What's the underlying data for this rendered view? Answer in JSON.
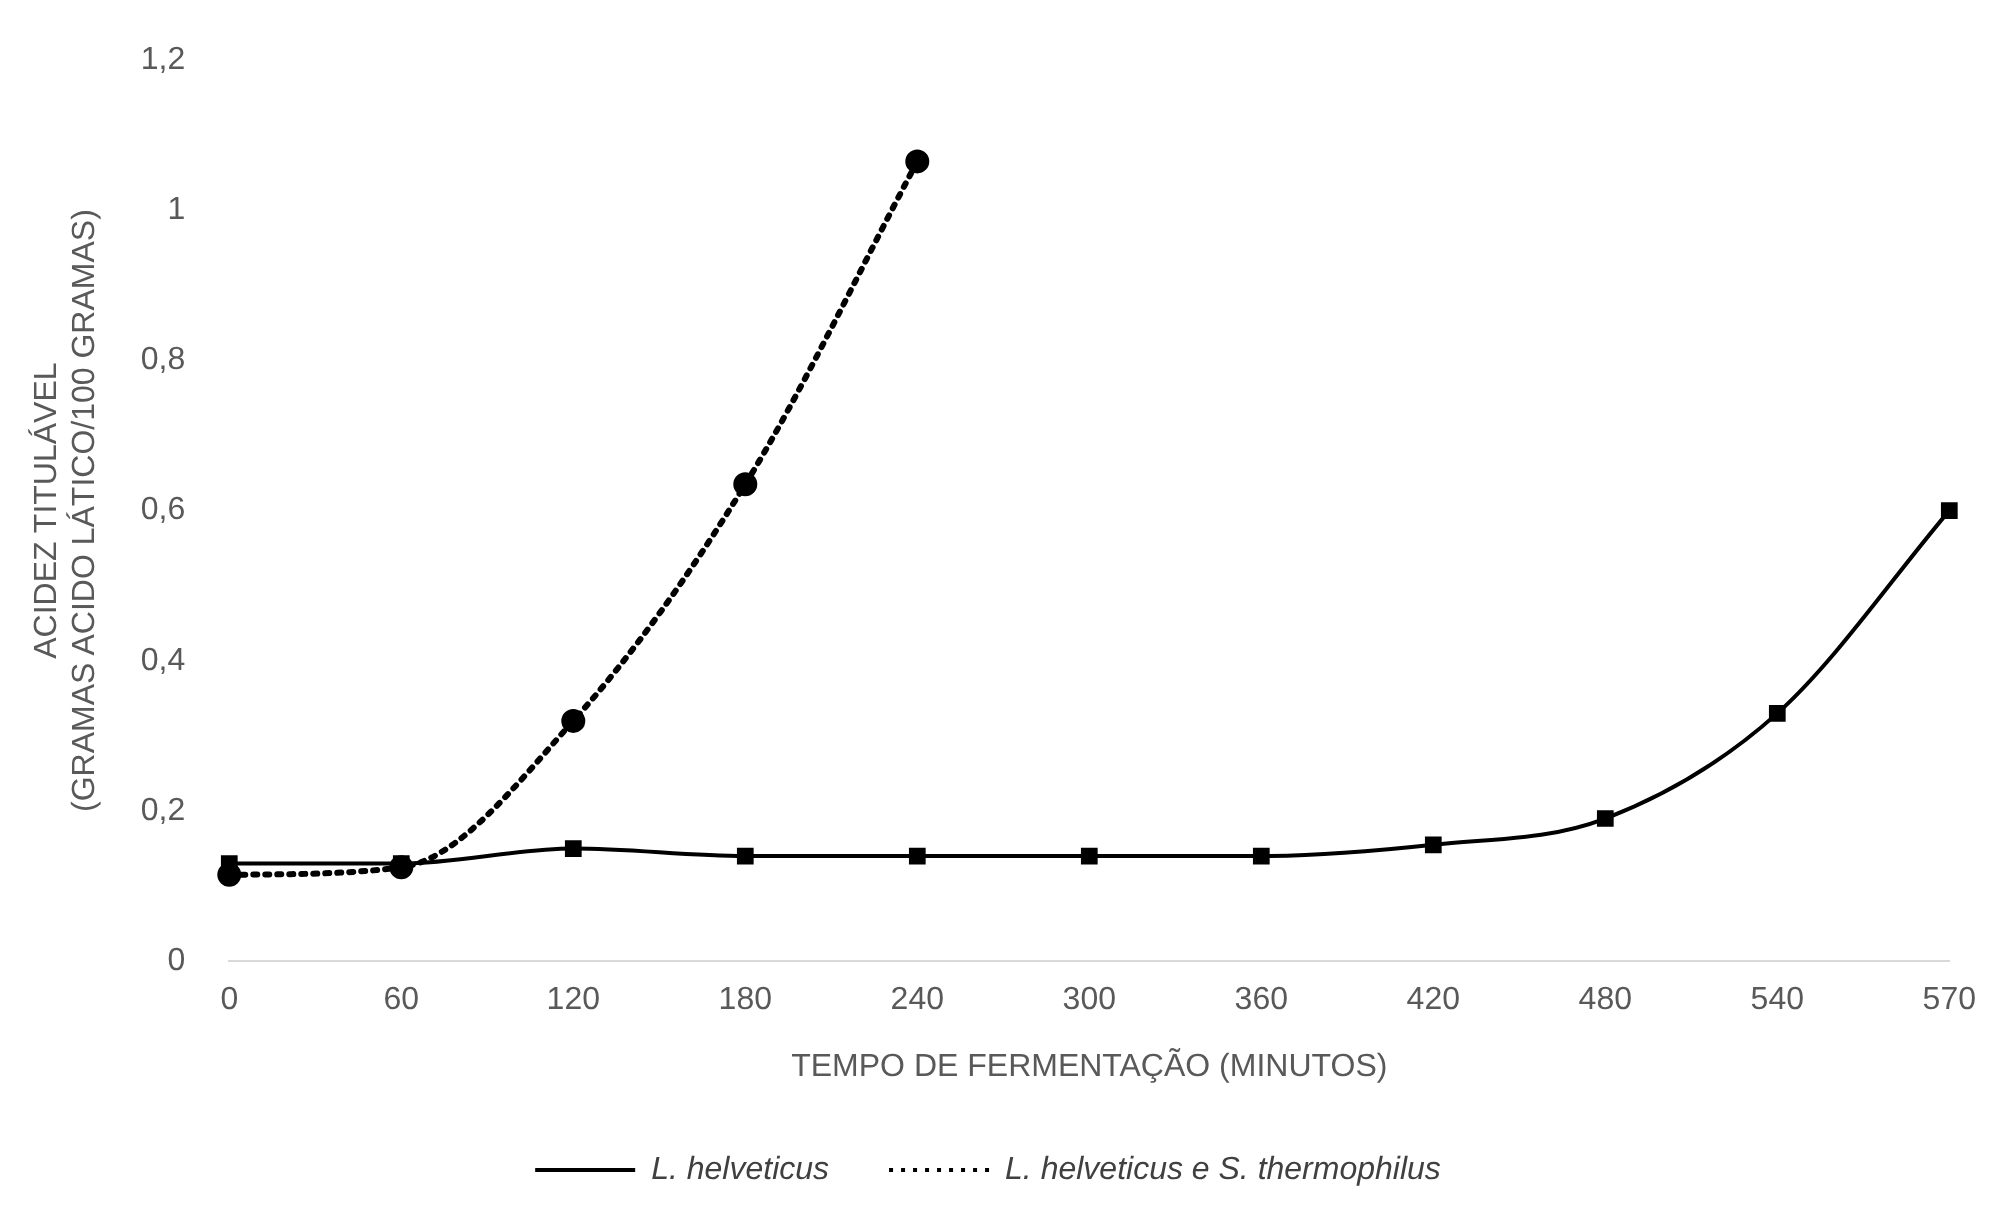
{
  "chart_data": {
    "type": "line",
    "xlabel": "TEMPO DE FERMENTAÇÃO (MINUTOS)",
    "ylabel": "ACIDEZ TITULÁVEL\n(GRAMAS ACIDO LÁTICO/100 GRAMAS)",
    "categories": [
      "0",
      "60",
      "120",
      "180",
      "240",
      "300",
      "360",
      "420",
      "480",
      "540",
      "570"
    ],
    "series": [
      {
        "name": "L. helveticus",
        "color": "#000000",
        "marker": "square",
        "line_style": "solid",
        "values": [
          0.13,
          0.13,
          0.15,
          0.14,
          0.14,
          0.14,
          0.14,
          0.155,
          0.19,
          0.33,
          0.6
        ]
      },
      {
        "name": "L. helveticus e S. thermophilus",
        "color": "#000000",
        "marker": "circle",
        "line_style": "dotted",
        "values": [
          0.115,
          0.125,
          0.32,
          0.635,
          1.065,
          null,
          null,
          null,
          null,
          null,
          null
        ]
      }
    ],
    "ylim": [
      0,
      1.2
    ],
    "yticks": [
      0,
      {
        "value": 0.2,
        "label": "0,2"
      },
      {
        "value": 0.4,
        "label": "0,4"
      },
      {
        "value": 0.6,
        "label": "0,6"
      },
      {
        "value": 0.8,
        "label": "0,8"
      },
      1,
      {
        "value": 1.2,
        "label": "1,2"
      }
    ],
    "grid": false,
    "legend": "bottom"
  }
}
